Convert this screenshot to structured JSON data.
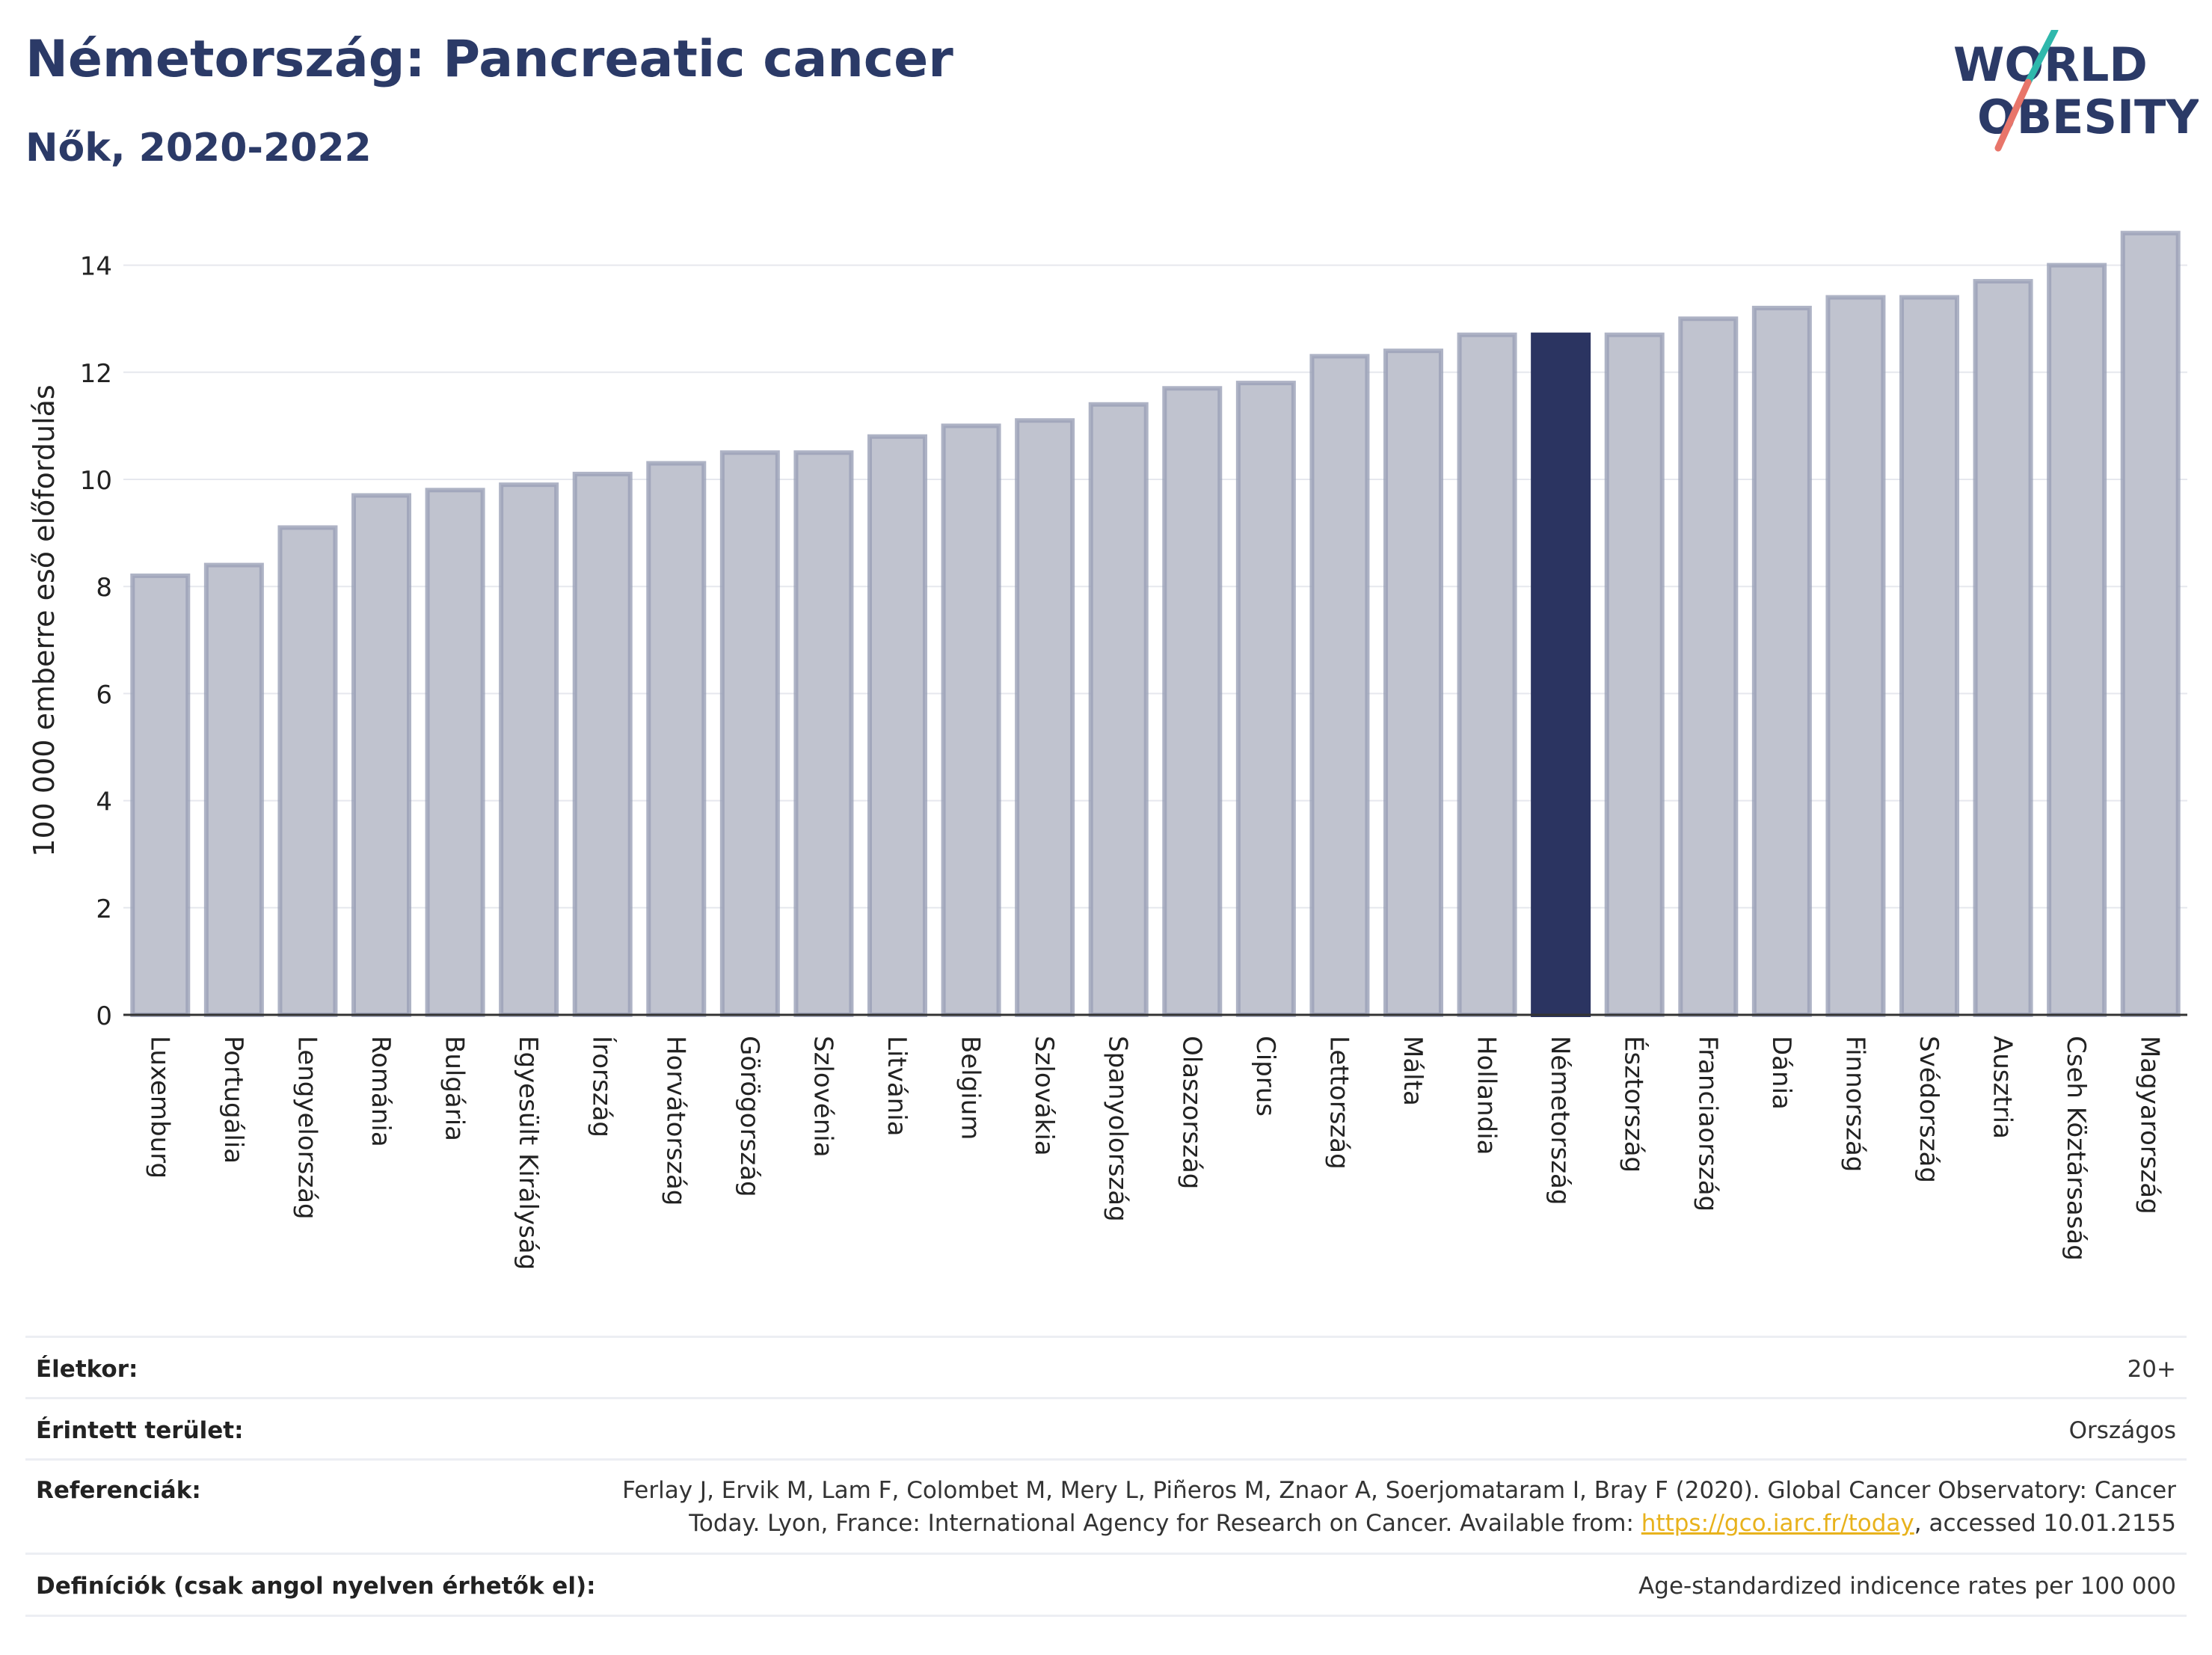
{
  "header": {
    "title": "Németország: Pancreatic cancer",
    "subtitle": "Nők, 2020-2022"
  },
  "logo": {
    "line1": "WORLD",
    "line2": "OBESITY"
  },
  "colors": {
    "bar": "#c0c3cf",
    "bar_border": "#9aa0b6",
    "highlight": "#2b3461",
    "title": "#2b3a67"
  },
  "chart_data": {
    "type": "bar",
    "ylabel": "100 000 emberre eső előfordulás",
    "ylim": [
      0,
      15
    ],
    "yticks": [
      0,
      2,
      4,
      6,
      8,
      10,
      12,
      14
    ],
    "grid": true,
    "highlight": "Németország",
    "categories": [
      "Luxemburg",
      "Portugália",
      "Lengyelország",
      "Románia",
      "Bulgária",
      "Egyesült Királyság",
      "Írország",
      "Horvátország",
      "Görögország",
      "Szlovénia",
      "Litvánia",
      "Belgium",
      "Szlovákia",
      "Spanyolország",
      "Olaszország",
      "Ciprus",
      "Lettország",
      "Málta",
      "Hollandia",
      "Németország",
      "Észtország",
      "Franciaország",
      "Dánia",
      "Finnország",
      "Svédország",
      "Ausztria",
      "Cseh Köztársaság",
      "Magyarország"
    ],
    "values": [
      8.2,
      8.4,
      9.1,
      9.7,
      9.8,
      9.9,
      10.1,
      10.3,
      10.5,
      10.5,
      10.8,
      11.0,
      11.1,
      11.4,
      11.7,
      11.8,
      12.3,
      12.4,
      12.7,
      12.7,
      12.7,
      13.0,
      13.2,
      13.4,
      13.4,
      13.7,
      14.0,
      14.6
    ]
  },
  "info": {
    "age_label": "Életkor:",
    "age_value": "20+",
    "area_label": "Érintett terület:",
    "area_value": "Országos",
    "ref_label": "Referenciák:",
    "ref_line1": "Ferlay J, Ervik M, Lam F, Colombet M, Mery L, Piñeros M, Znaor A, Soerjomataram I, Bray F (2020). Global Cancer Observatory: Cancer",
    "ref_line2_pre": "Today. Lyon, France: International Agency for Research on Cancer. Available from: ",
    "ref_link": "https://gco.iarc.fr/today",
    "ref_line2_post": ", accessed 10.01.2155",
    "def_label": "Definíciók (csak angol nyelven érhetők el):",
    "def_value": "Age-standardized indicence rates per 100 000"
  }
}
